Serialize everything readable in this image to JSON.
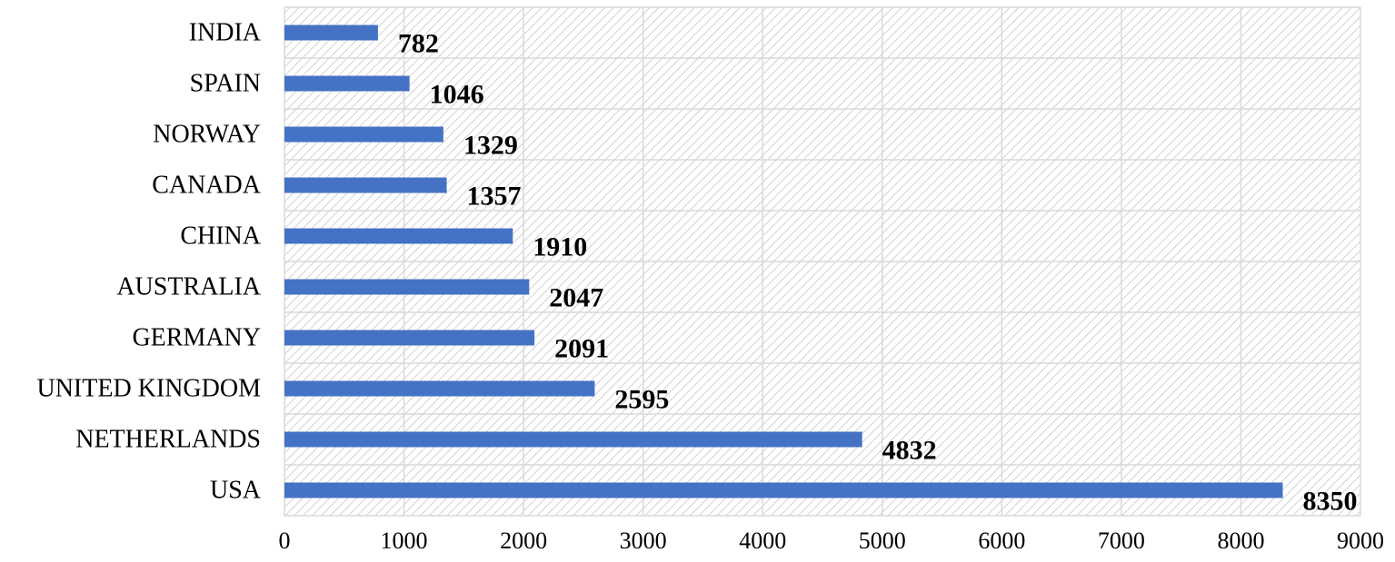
{
  "chart_data": {
    "type": "bar",
    "orientation": "horizontal",
    "title": "",
    "xlabel": "",
    "ylabel": "",
    "categories": [
      "USA",
      "NETHERLANDS",
      "UNITED KINGDOM",
      "GERMANY",
      "AUSTRALIA",
      "CHINA",
      "CANADA",
      "NORWAY",
      "SPAIN",
      "INDIA"
    ],
    "values": [
      8350,
      4832,
      2595,
      2091,
      2047,
      1910,
      1357,
      1329,
      1046,
      782
    ],
    "xlim": [
      0,
      9000
    ],
    "xticks": [
      0,
      1000,
      2000,
      3000,
      4000,
      5000,
      6000,
      7000,
      8000,
      9000
    ],
    "grid": true,
    "legend": "none",
    "bar_color": "#4472C4",
    "gridline_color": "#D9D9D9",
    "background_pattern": "diagonal-hatch"
  }
}
